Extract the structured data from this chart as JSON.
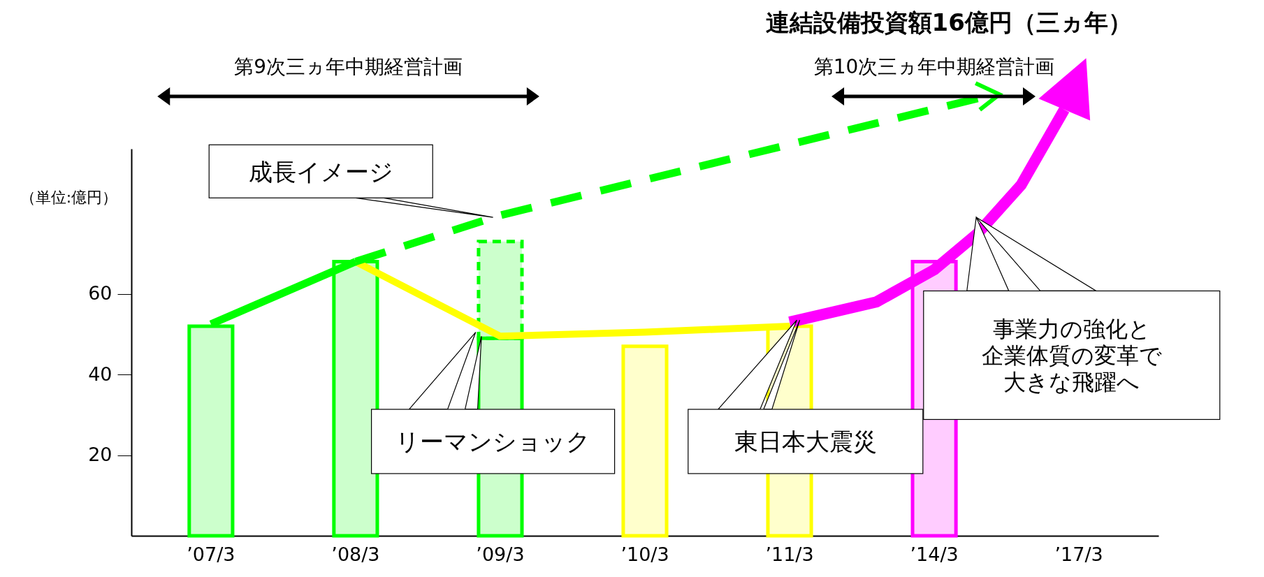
{
  "chart_data": {
    "type": "bar",
    "stacked": true,
    "ylabel": "（単位:億円）",
    "categories": [
      "’07/3",
      "’08/3",
      "’09/3",
      "’10/3",
      "’11/3",
      "’14/3",
      "’17/3"
    ],
    "series": [
      {
        "colors": [
          "#00ff00",
          "#00ff00",
          "#00ff00",
          "#ffff00",
          "#ffff00",
          "#ff00ff",
          null
        ],
        "values": [
          52,
          68,
          49,
          47,
          52,
          68,
          null
        ]
      },
      {
        "color": "#00ff00",
        "line_style": "dashed",
        "values": [
          null,
          null,
          24,
          null,
          null,
          null,
          null
        ]
      },
      {
        "type": "line",
        "color": "#ffff00",
        "values": [
          null,
          68,
          49.5,
          50.5,
          52,
          null,
          null
        ]
      }
    ],
    "ylim": [
      0,
      96
    ],
    "yticks": [
      20,
      40,
      60
    ],
    "annotations": [
      "連結設備投資額16億円（三ヵ年）",
      "第9次三ヵ年中期経営計画",
      "第10次三ヵ年中期経営計画",
      "成長イメージ",
      "リーマンショック",
      "東日本大震災",
      "事業力の強化と企業体質の変革で大きな飛躍へ"
    ]
  }
}
